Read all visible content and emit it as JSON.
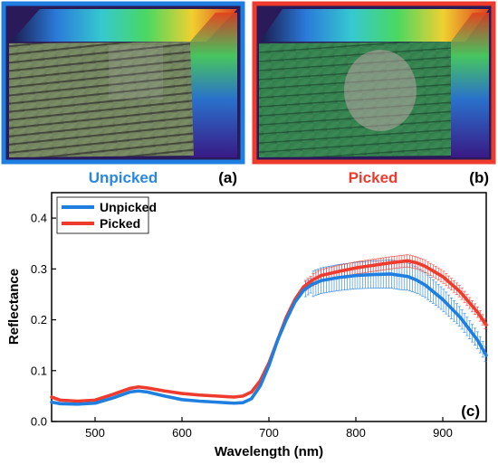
{
  "panel_a": {
    "caption": "Unpicked",
    "letter": "(a)",
    "frame_color": "#1e7fe0",
    "caption_color": "#2a86e6"
  },
  "panel_b": {
    "caption": "Picked",
    "letter": "(b)",
    "frame_color": "#ee3b2e",
    "caption_color": "#ee3b2e"
  },
  "chart_data": {
    "type": "line",
    "title": "",
    "panel_letter": "(c)",
    "xlabel": "Wavelength (nm)",
    "ylabel": "Reflectance",
    "xlim": [
      450,
      950
    ],
    "ylim": [
      0,
      0.45
    ],
    "x_ticks": [
      500,
      600,
      700,
      800,
      900
    ],
    "x_tick_labels": [
      "500",
      "600",
      "700",
      "800",
      "900"
    ],
    "y_ticks": [
      0.0,
      0.1,
      0.2,
      0.3,
      0.4
    ],
    "y_tick_labels": [
      "0.0",
      "0.1",
      "0.2",
      "0.3",
      "0.4"
    ],
    "grid": false,
    "legend": {
      "placement": "top-left",
      "entries": [
        "Unpicked",
        "Picked"
      ]
    },
    "error_bars": true,
    "series": [
      {
        "name": "Unpicked",
        "color": "#1e7fe0",
        "points": [
          [
            450,
            0.038
          ],
          [
            460,
            0.035
          ],
          [
            480,
            0.034
          ],
          [
            500,
            0.036
          ],
          [
            520,
            0.046
          ],
          [
            540,
            0.058
          ],
          [
            550,
            0.06
          ],
          [
            560,
            0.058
          ],
          [
            580,
            0.05
          ],
          [
            600,
            0.043
          ],
          [
            620,
            0.04
          ],
          [
            640,
            0.038
          ],
          [
            660,
            0.036
          ],
          [
            670,
            0.037
          ],
          [
            680,
            0.045
          ],
          [
            690,
            0.07
          ],
          [
            700,
            0.11
          ],
          [
            710,
            0.16
          ],
          [
            720,
            0.2
          ],
          [
            730,
            0.235
          ],
          [
            740,
            0.258
          ],
          [
            750,
            0.27
          ],
          [
            760,
            0.277
          ],
          [
            780,
            0.283
          ],
          [
            800,
            0.287
          ],
          [
            820,
            0.289
          ],
          [
            840,
            0.29
          ],
          [
            860,
            0.285
          ],
          [
            870,
            0.278
          ],
          [
            880,
            0.268
          ],
          [
            900,
            0.24
          ],
          [
            920,
            0.205
          ],
          [
            940,
            0.16
          ],
          [
            950,
            0.13
          ]
        ],
        "error": [
          [
            750,
            0.025
          ],
          [
            800,
            0.026
          ],
          [
            850,
            0.028
          ],
          [
            900,
            0.022
          ],
          [
            950,
            0.015
          ]
        ]
      },
      {
        "name": "Picked",
        "color": "#ee3b2e",
        "points": [
          [
            450,
            0.048
          ],
          [
            460,
            0.042
          ],
          [
            480,
            0.04
          ],
          [
            500,
            0.042
          ],
          [
            520,
            0.053
          ],
          [
            540,
            0.065
          ],
          [
            550,
            0.068
          ],
          [
            560,
            0.066
          ],
          [
            580,
            0.06
          ],
          [
            600,
            0.055
          ],
          [
            620,
            0.052
          ],
          [
            640,
            0.05
          ],
          [
            660,
            0.048
          ],
          [
            670,
            0.05
          ],
          [
            680,
            0.058
          ],
          [
            690,
            0.08
          ],
          [
            700,
            0.115
          ],
          [
            710,
            0.16
          ],
          [
            720,
            0.205
          ],
          [
            730,
            0.24
          ],
          [
            740,
            0.265
          ],
          [
            750,
            0.278
          ],
          [
            760,
            0.287
          ],
          [
            780,
            0.295
          ],
          [
            800,
            0.302
          ],
          [
            820,
            0.307
          ],
          [
            840,
            0.312
          ],
          [
            860,
            0.316
          ],
          [
            870,
            0.312
          ],
          [
            880,
            0.305
          ],
          [
            900,
            0.285
          ],
          [
            920,
            0.255
          ],
          [
            940,
            0.215
          ],
          [
            950,
            0.19
          ]
        ],
        "error": [
          [
            750,
            0.012
          ],
          [
            800,
            0.012
          ],
          [
            850,
            0.012
          ],
          [
            900,
            0.012
          ],
          [
            950,
            0.01
          ]
        ]
      }
    ]
  }
}
